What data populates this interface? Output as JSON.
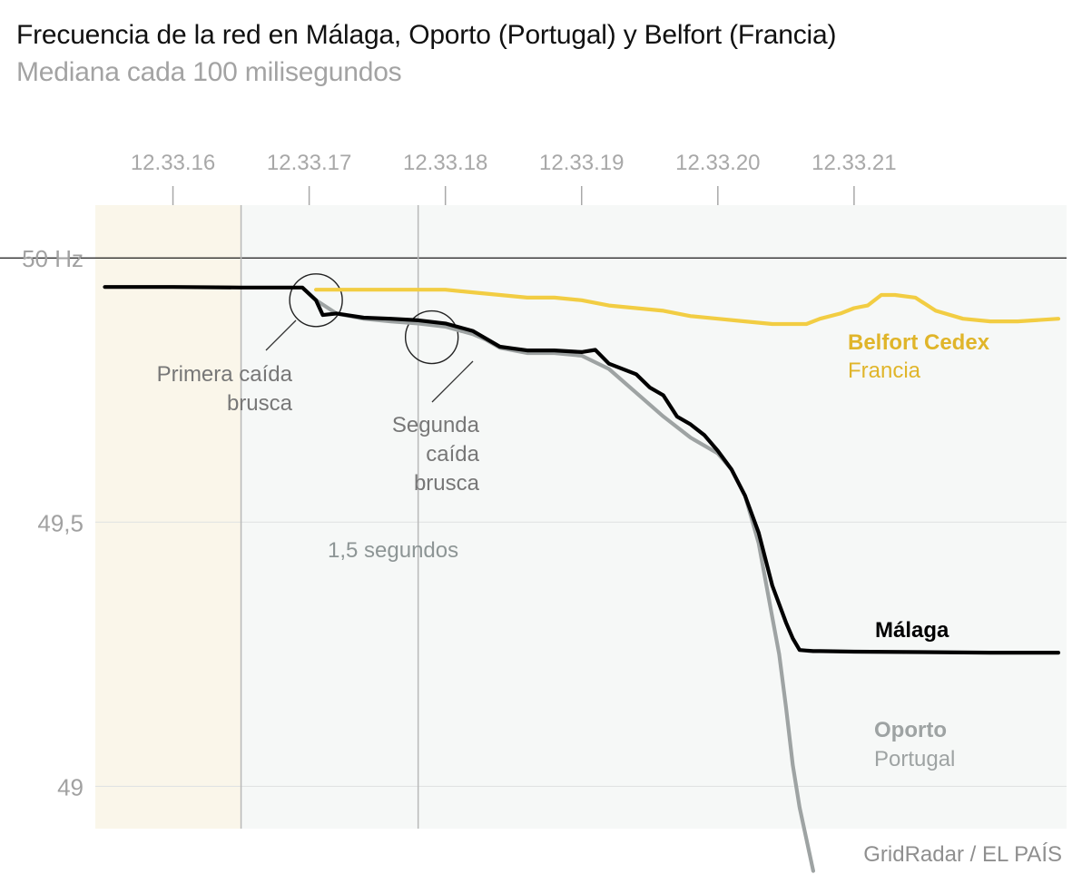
{
  "header": {
    "title": "Frecuencia de la red en Málaga, Oporto (Portugal) y Belfort (Francia)",
    "subtitle": "Mediana cada 100 milisegundos"
  },
  "source": "GridRadar / EL PAÍS",
  "colors": {
    "belfort": "#f2cd43",
    "belfort_label": "#e0b52a",
    "malaga": "#000000",
    "oporto": "#9ea3a3",
    "shade_before": "#faf6ea",
    "shade_after": "#f6f8f7",
    "annotation": "#777777"
  },
  "chart_data": {
    "type": "line",
    "title": "Frecuencia de la red en Málaga, Oporto (Portugal) y Belfort (Francia)",
    "subtitle": "Mediana cada 100 milisegundos",
    "xlabel": "",
    "ylabel": "",
    "x_axis_position": "top",
    "xlim": [
      15.43,
      22.56
    ],
    "ylim": [
      48.92,
      50.1
    ],
    "x_ticks": [
      {
        "value": 16,
        "label": "12.33.16"
      },
      {
        "value": 17,
        "label": "12.33.17"
      },
      {
        "value": 18,
        "label": "12.33.18"
      },
      {
        "value": 19,
        "label": "12.33.19"
      },
      {
        "value": 20,
        "label": "12.33.20"
      },
      {
        "value": 21,
        "label": "12.33.21"
      }
    ],
    "y_ticks": [
      {
        "value": 50.0,
        "label": "50 Hz"
      },
      {
        "value": 49.5,
        "label": "49,5"
      },
      {
        "value": 49.0,
        "label": "49"
      }
    ],
    "series": [
      {
        "name": "Belfort Cedex",
        "sublabel": "Francia",
        "x": [
          17.05,
          17.2,
          17.4,
          17.6,
          17.8,
          18.0,
          18.2,
          18.4,
          18.6,
          18.8,
          19.0,
          19.2,
          19.4,
          19.6,
          19.8,
          20.0,
          20.2,
          20.4,
          20.55,
          20.65,
          20.75,
          20.9,
          21.0,
          21.1,
          21.2,
          21.3,
          21.45,
          21.6,
          21.8,
          22.0,
          22.2,
          22.5
        ],
        "y": [
          49.94,
          49.94,
          49.94,
          49.94,
          49.94,
          49.94,
          49.935,
          49.93,
          49.925,
          49.925,
          49.92,
          49.91,
          49.905,
          49.9,
          49.89,
          49.885,
          49.88,
          49.875,
          49.875,
          49.875,
          49.885,
          49.895,
          49.905,
          49.91,
          49.93,
          49.93,
          49.925,
          49.9,
          49.885,
          49.88,
          49.88,
          49.885
        ]
      },
      {
        "name": "Málaga",
        "x": [
          15.5,
          16.0,
          16.5,
          16.95,
          17.05,
          17.1,
          17.2,
          17.4,
          17.6,
          17.8,
          18.0,
          18.2,
          18.4,
          18.6,
          18.8,
          19.0,
          19.1,
          19.2,
          19.4,
          19.5,
          19.6,
          19.7,
          19.8,
          19.9,
          20.0,
          20.1,
          20.2,
          20.3,
          20.4,
          20.5,
          20.55,
          20.6,
          20.65,
          20.7,
          20.75,
          21.0,
          21.5,
          22.0,
          22.5
        ],
        "y": [
          49.945,
          49.945,
          49.944,
          49.944,
          49.92,
          49.892,
          49.895,
          49.887,
          49.885,
          49.882,
          49.876,
          49.862,
          49.832,
          49.825,
          49.825,
          49.822,
          49.826,
          49.8,
          49.78,
          49.755,
          49.74,
          49.7,
          49.685,
          49.665,
          49.635,
          49.6,
          49.55,
          49.48,
          49.38,
          49.31,
          49.28,
          49.258,
          49.257,
          49.256,
          49.256,
          49.255,
          49.254,
          49.253,
          49.253
        ]
      },
      {
        "name": "Oporto",
        "sublabel": "Portugal",
        "x": [
          17.05,
          17.2,
          17.4,
          17.6,
          17.8,
          18.0,
          18.2,
          18.3,
          18.4,
          18.6,
          18.8,
          19.0,
          19.2,
          19.4,
          19.6,
          19.8,
          20.0,
          20.1,
          20.2,
          20.3,
          20.4,
          20.45,
          20.5,
          20.55,
          20.6,
          20.65,
          20.7
        ],
        "y": [
          49.92,
          49.895,
          49.885,
          49.88,
          49.876,
          49.87,
          49.856,
          49.845,
          49.83,
          49.82,
          49.82,
          49.815,
          49.79,
          49.745,
          49.7,
          49.66,
          49.63,
          49.6,
          49.55,
          49.46,
          49.32,
          49.25,
          49.15,
          49.04,
          48.96,
          48.9,
          48.84
        ]
      }
    ],
    "bands": [
      {
        "from": 15.43,
        "to": 16.5,
        "fill": "shade_before"
      },
      {
        "from": 16.5,
        "to": 22.56,
        "fill": "shade_after"
      }
    ],
    "markers": [
      16.5,
      17.8
    ],
    "annotations": {
      "interval": "1,5 segundos",
      "first_drop": [
        "Primera caída",
        "brusca"
      ],
      "second_drop": [
        "Segunda",
        "caída",
        "brusca"
      ]
    }
  }
}
